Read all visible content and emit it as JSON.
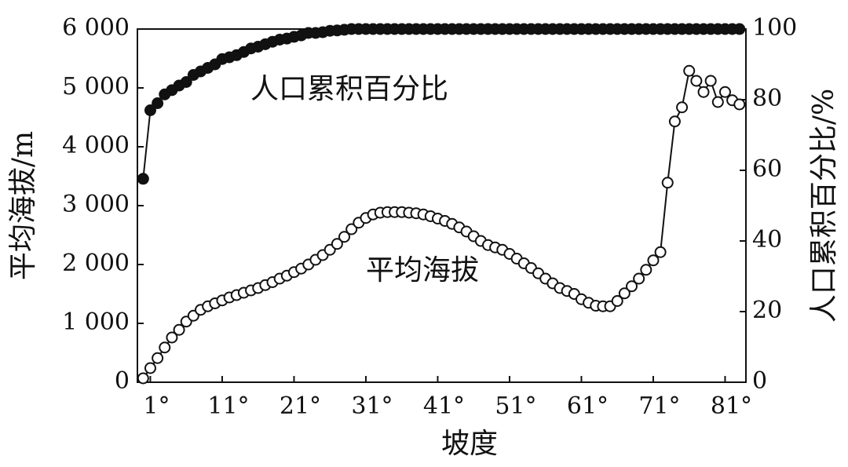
{
  "chart_data": {
    "type": "line",
    "xlabel": "坡度",
    "ylabel": "平均海拔/m",
    "y2label": "人口累积百分比/%",
    "x": [
      0,
      1,
      2,
      3,
      4,
      5,
      6,
      7,
      8,
      9,
      10,
      11,
      12,
      13,
      14,
      15,
      16,
      17,
      18,
      19,
      20,
      21,
      22,
      23,
      24,
      25,
      26,
      27,
      28,
      29,
      30,
      31,
      32,
      33,
      34,
      35,
      36,
      37,
      38,
      39,
      40,
      41,
      42,
      43,
      44,
      45,
      46,
      47,
      48,
      49,
      50,
      51,
      52,
      53,
      54,
      55,
      56,
      57,
      58,
      59,
      60,
      61,
      62,
      63,
      64,
      65,
      66,
      67,
      68,
      69,
      70,
      71,
      72,
      73,
      74,
      75,
      76,
      77,
      78,
      79,
      80,
      81,
      82,
      83
    ],
    "series": [
      {
        "name": "平均海拔",
        "color": "#111111",
        "marker": "open",
        "axis": "y",
        "values": [
          67,
          240,
          410,
          590,
          760,
          890,
          1030,
          1130,
          1230,
          1290,
          1340,
          1390,
          1440,
          1480,
          1520,
          1560,
          1600,
          1650,
          1700,
          1760,
          1810,
          1870,
          1930,
          2000,
          2080,
          2160,
          2250,
          2350,
          2470,
          2600,
          2710,
          2790,
          2850,
          2880,
          2890,
          2890,
          2890,
          2880,
          2870,
          2850,
          2820,
          2780,
          2740,
          2690,
          2630,
          2560,
          2480,
          2400,
          2330,
          2290,
          2250,
          2180,
          2100,
          2020,
          1940,
          1850,
          1760,
          1680,
          1600,
          1550,
          1500,
          1410,
          1350,
          1300,
          1290,
          1290,
          1380,
          1510,
          1630,
          1760,
          1910,
          2070,
          2210,
          3390,
          4430,
          4670,
          5290,
          5120,
          4930,
          5120,
          4760,
          4930,
          4790,
          4720
        ]
      },
      {
        "name": "人口累积百分比",
        "color": "#111111",
        "marker": "filled",
        "axis": "y2",
        "values": [
          57.6,
          77,
          79,
          81.5,
          82.7,
          84,
          85,
          87,
          88,
          89,
          90,
          91.5,
          92,
          92.6,
          93.5,
          94.5,
          95,
          95.7,
          96.4,
          97,
          97.3,
          97.8,
          98.2,
          98.9,
          98.9,
          99.1,
          99.5,
          99.6,
          99.8,
          100,
          100,
          100,
          100,
          100,
          100,
          100,
          100,
          100,
          100,
          100,
          100,
          100,
          100,
          100,
          100,
          100,
          100,
          100,
          100,
          100,
          100,
          100,
          100,
          100,
          100,
          100,
          100,
          100,
          100,
          100,
          100,
          100,
          100,
          100,
          100,
          100,
          100,
          100,
          100,
          100,
          100,
          100,
          100,
          100,
          100,
          100,
          100,
          100,
          100,
          100,
          100,
          100,
          100,
          100
        ]
      }
    ],
    "xlim": [
      -0.8,
      83.9
    ],
    "xticks": [
      {
        "value": 1,
        "label": "1°"
      },
      {
        "value": 11,
        "label": "11°"
      },
      {
        "value": 21,
        "label": "21°"
      },
      {
        "value": 31,
        "label": "31°"
      },
      {
        "value": 41,
        "label": "41°"
      },
      {
        "value": 51,
        "label": "51°"
      },
      {
        "value": 61,
        "label": "61°"
      },
      {
        "value": 71,
        "label": "71°"
      },
      {
        "value": 81,
        "label": "81°"
      }
    ],
    "ylim": [
      0,
      6000
    ],
    "yticks": [
      0,
      {
        "value": 1000,
        "label": "1 000"
      },
      {
        "value": 2000,
        "label": "2 000"
      },
      {
        "value": 3000,
        "label": "3 000"
      },
      {
        "value": 4000,
        "label": "4 000"
      },
      {
        "value": 5000,
        "label": "5 000"
      },
      {
        "value": 6000,
        "label": "6 000"
      }
    ],
    "y2lim": [
      0,
      100
    ],
    "y2ticks": [
      0,
      20,
      40,
      60,
      80,
      100
    ],
    "grid": false
  }
}
